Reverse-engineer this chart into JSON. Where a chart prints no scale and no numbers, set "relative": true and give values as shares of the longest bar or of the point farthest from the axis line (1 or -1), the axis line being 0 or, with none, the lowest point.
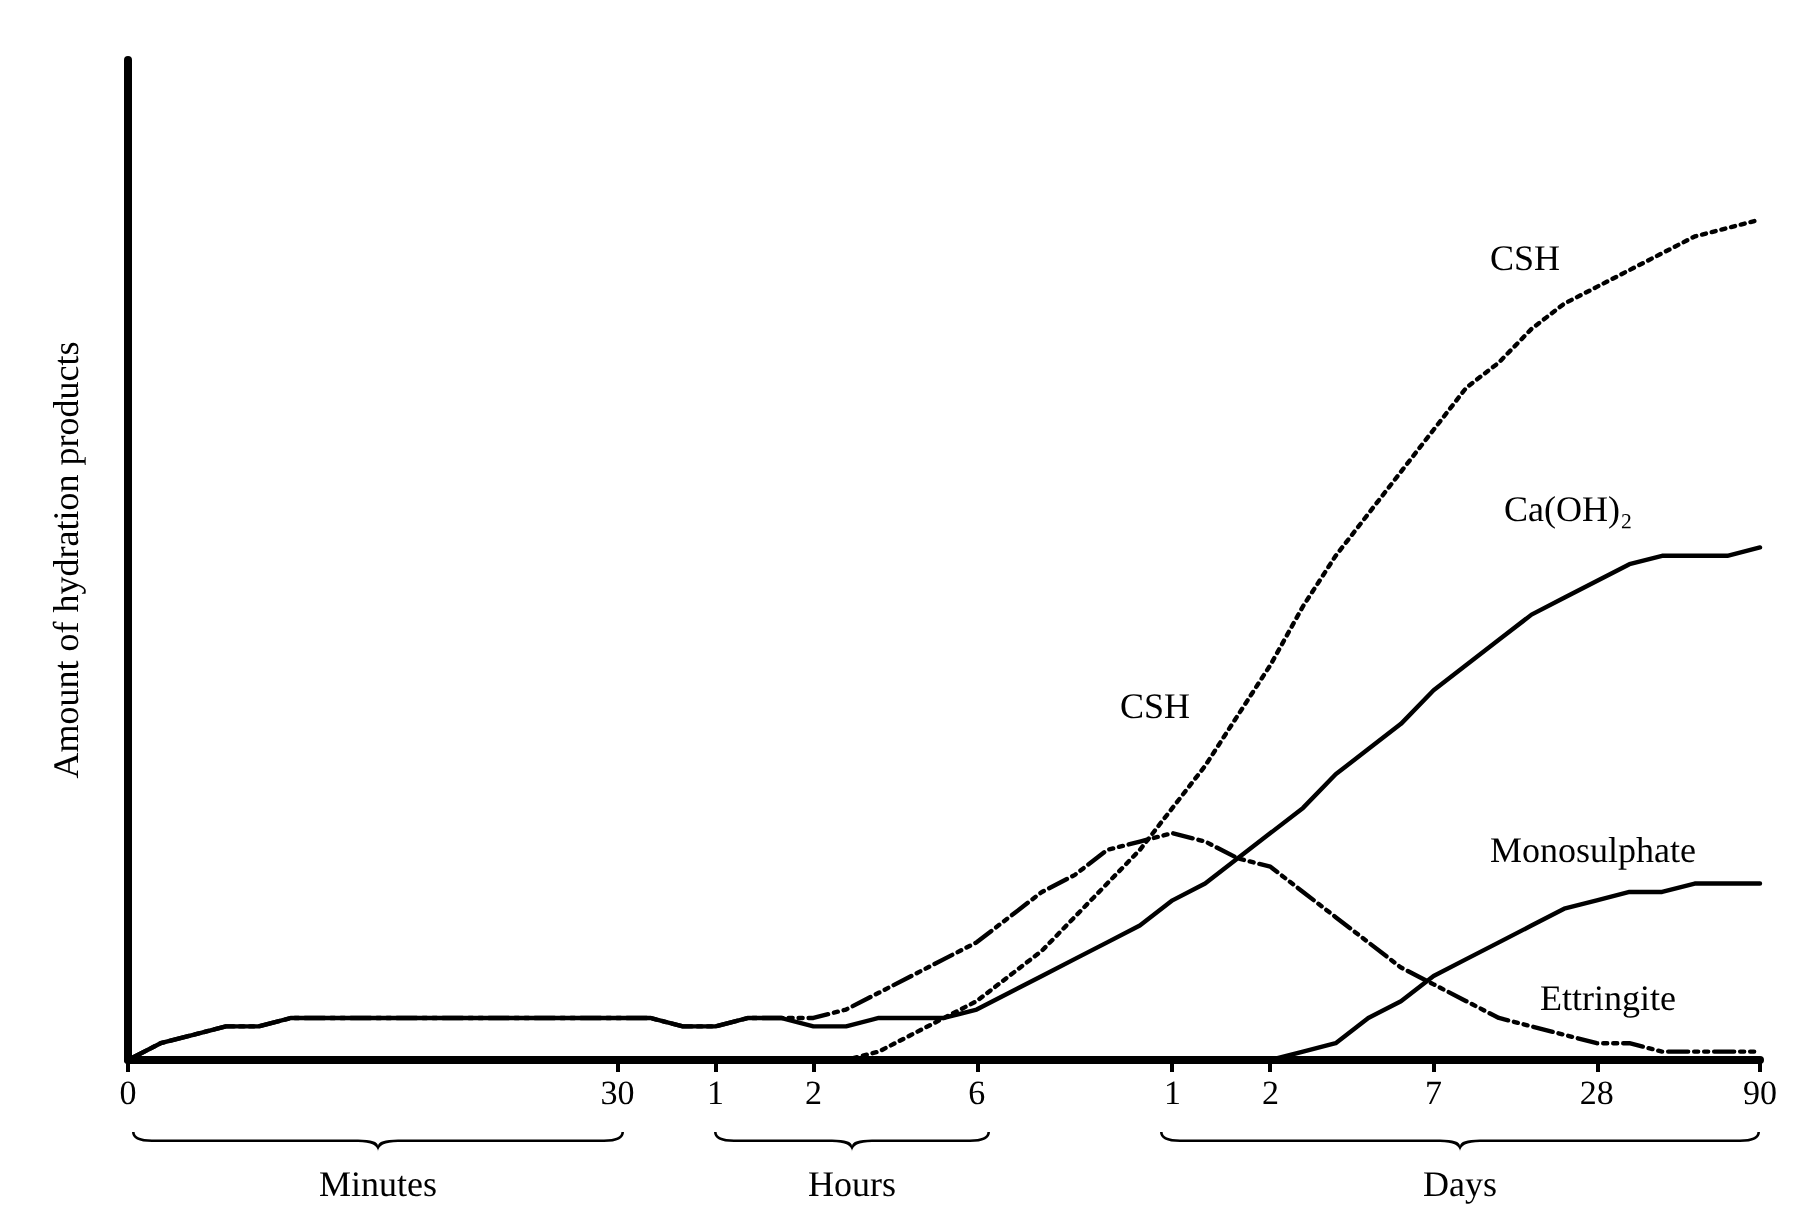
{
  "chart_data": {
    "type": "line",
    "relative": true,
    "ylabel": "Amount of hydration products",
    "categories": [
      "0",
      null,
      null,
      null,
      null,
      null,
      null,
      null,
      null,
      null,
      null,
      null,
      null,
      null,
      null,
      "30",
      null,
      null,
      "1",
      null,
      null,
      "2",
      null,
      null,
      null,
      null,
      "6",
      null,
      null,
      null,
      null,
      null,
      "1",
      null,
      null,
      "2",
      null,
      null,
      null,
      null,
      "7",
      null,
      null,
      null,
      null,
      "28",
      null,
      null,
      null,
      null,
      "90"
    ],
    "series": [
      {
        "name": "CSH",
        "color": "#000000",
        "line_style": "dotted",
        "values": [
          null,
          null,
          null,
          null,
          null,
          null,
          null,
          null,
          null,
          null,
          null,
          null,
          null,
          null,
          null,
          null,
          null,
          null,
          null,
          null,
          null,
          0,
          0,
          0.01,
          0.03,
          0.05,
          0.07,
          0.1,
          0.13,
          0.17,
          0.21,
          0.25,
          0.3,
          0.35,
          0.41,
          0.47,
          0.54,
          0.6,
          0.65,
          0.7,
          0.75,
          0.8,
          0.83,
          0.87,
          0.9,
          0.92,
          0.94,
          0.96,
          0.98,
          0.99,
          1
        ]
      },
      {
        "name": "Ca(OH)₂",
        "color": "#000000",
        "line_style": "solid",
        "values": [
          0,
          0.02,
          0.03,
          0.04,
          0.04,
          0.05,
          0.05,
          0.05,
          0.05,
          0.05,
          0.05,
          0.05,
          0.05,
          0.05,
          0.05,
          0.05,
          0.05,
          0.04,
          0.04,
          0.05,
          0.05,
          0.04,
          0.04,
          0.05,
          0.05,
          0.05,
          0.06,
          0.08,
          0.1,
          0.12,
          0.14,
          0.16,
          0.19,
          0.21,
          0.24,
          0.27,
          0.3,
          0.34,
          0.37,
          0.4,
          0.44,
          0.47,
          0.5,
          0.53,
          0.55,
          0.57,
          0.59,
          0.6,
          0.6,
          0.6,
          0.61
        ]
      },
      {
        "name": "Monosulphate",
        "color": "#000000",
        "line_style": "solid",
        "values": [
          null,
          null,
          null,
          null,
          null,
          null,
          null,
          null,
          null,
          null,
          null,
          null,
          null,
          null,
          null,
          null,
          null,
          null,
          null,
          null,
          null,
          null,
          null,
          null,
          null,
          null,
          null,
          null,
          null,
          null,
          null,
          null,
          null,
          null,
          null,
          0,
          0.01,
          0.02,
          0.05,
          0.07,
          0.1,
          0.12,
          0.14,
          0.16,
          0.18,
          0.19,
          0.2,
          0.2,
          0.21,
          0.21,
          0.21
        ]
      },
      {
        "name": "Ettringite",
        "color": "#000000",
        "line_style": "dashed",
        "values": [
          0,
          0.02,
          0.03,
          0.04,
          0.04,
          0.05,
          0.05,
          0.05,
          0.05,
          0.05,
          0.05,
          0.05,
          0.05,
          0.05,
          0.05,
          0.05,
          0.05,
          0.04,
          0.04,
          0.05,
          0.05,
          0.05,
          0.06,
          0.08,
          0.1,
          0.12,
          0.14,
          0.17,
          0.2,
          0.22,
          0.25,
          0.26,
          0.27,
          0.26,
          0.24,
          0.23,
          0.2,
          0.17,
          0.14,
          0.11,
          0.09,
          0.07,
          0.05,
          0.04,
          0.03,
          0.02,
          0.02,
          0.01,
          0.01,
          0.01,
          0.01
        ]
      }
    ],
    "annotations": [
      "CSH",
      "Minutes",
      "Hours",
      "Days"
    ]
  }
}
